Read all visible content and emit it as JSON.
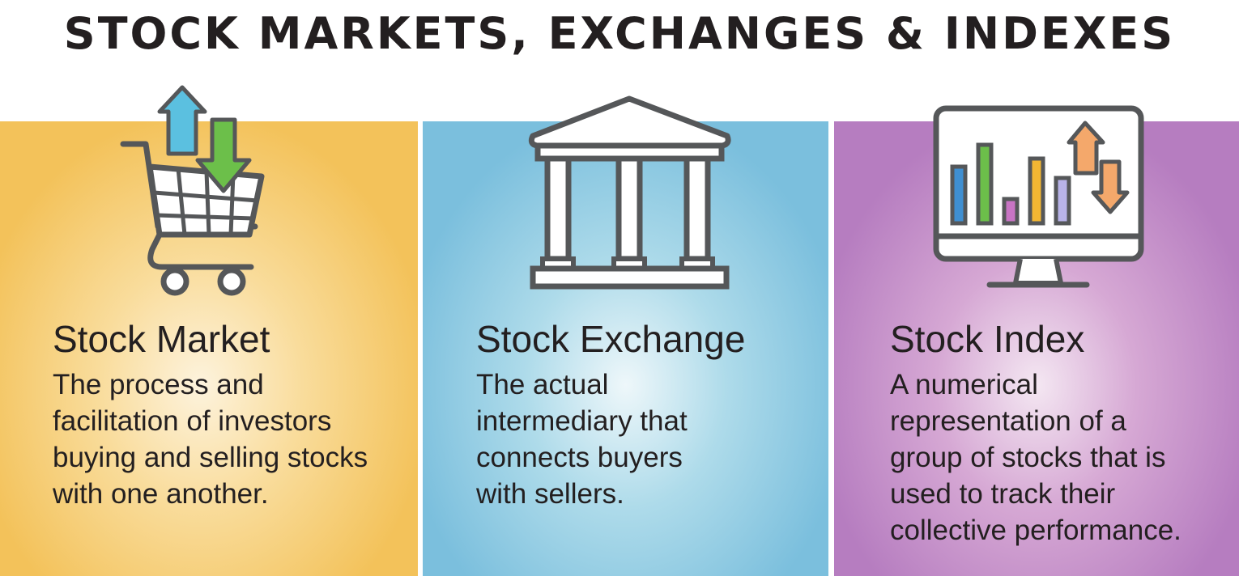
{
  "title": "STOCK MARKETS, EXCHANGES & INDEXES",
  "panels": [
    {
      "heading": "Stock Market",
      "text": "The process and facilitation of investors buying and selling stocks with one another.",
      "icon": "shopping-cart-arrows-icon",
      "color": "#f3c25a"
    },
    {
      "heading": "Stock Exchange",
      "text": "The actual intermediary that connects buyers with sellers.",
      "icon": "bank-building-icon",
      "color": "#7bbfdd"
    },
    {
      "heading": "Stock Index",
      "text": "A numerical representation of a group of stocks that is used to track their collective performance.",
      "icon": "monitor-bar-chart-icon",
      "color": "#b67dc0"
    }
  ]
}
